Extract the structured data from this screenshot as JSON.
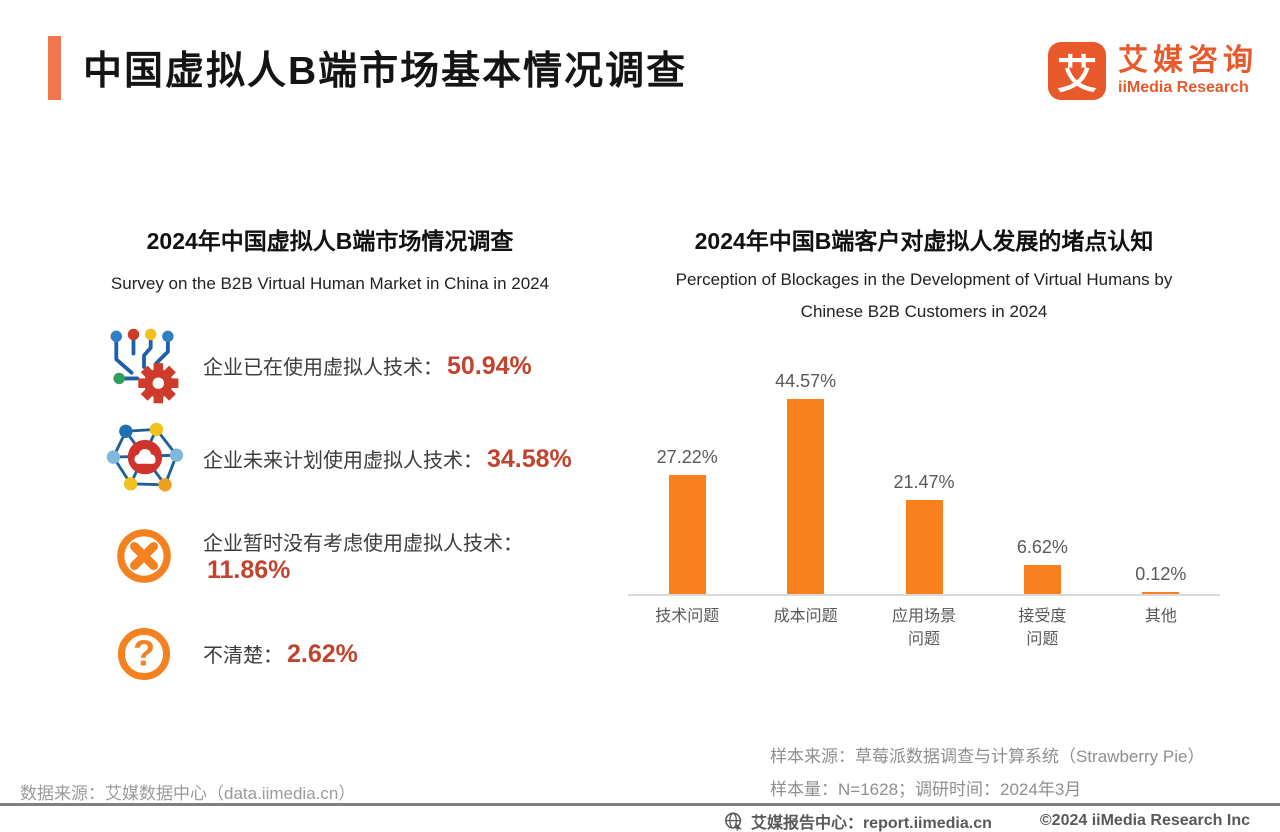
{
  "page": {
    "title": "中国虚拟人B端市场基本情况调查",
    "logo": {
      "glyph": "艾",
      "name_cn": "艾媒咨询",
      "name_en": "iiMedia Research"
    }
  },
  "left_panel": {
    "title": "2024年中国虚拟人B端市场情况调查",
    "subtitle": "Survey on the B2B Virtual Human Market in China in 2024",
    "items": [
      {
        "icon": "circuit-tech-icon",
        "label": "企业已在使用虚拟人技术：",
        "value": "50.94%"
      },
      {
        "icon": "network-cloud-icon",
        "label": "企业未来计划使用虚拟人技术：",
        "value": "34.58%"
      },
      {
        "icon": "cross-circle-icon",
        "label": "企业暂时没有考虑使用虚拟人技术：",
        "value": "11.86%"
      },
      {
        "icon": "question-circle-icon",
        "label": "不清楚：",
        "value": "2.62%"
      }
    ]
  },
  "right_panel": {
    "title": "2024年中国B端客户对虚拟人发展的堵点认知",
    "subtitle_line1": "Perception of Blockages in the Development of Virtual Humans by",
    "subtitle_line2": "Chinese B2B Customers in 2024"
  },
  "chart_data": {
    "type": "bar",
    "title": "2024年中国B端客户对虚拟人发展的堵点认知",
    "categories": [
      "技术问题",
      "成本问题",
      "应用场景问题",
      "接受度问题",
      "其他"
    ],
    "category_lines": [
      [
        "技术问题"
      ],
      [
        "成本问题"
      ],
      [
        "应用场景",
        "问题"
      ],
      [
        "接受度",
        "问题"
      ],
      [
        "其他"
      ]
    ],
    "values": [
      27.22,
      44.57,
      21.47,
      6.62,
      0.12
    ],
    "value_labels": [
      "27.22%",
      "44.57%",
      "21.47%",
      "6.62%",
      "0.12%"
    ],
    "xlabel": "",
    "ylabel": "",
    "ylim": [
      0,
      50
    ],
    "grid": false,
    "legend": false,
    "bar_color": "#F8811E"
  },
  "footnotes": {
    "data_source": "数据来源：艾媒数据中心（data.iimedia.cn）",
    "sample_source": "样本来源：草莓派数据调查与计算系统（Strawberry Pie）",
    "sample_info": "样本量：N=1628；调研时间：2024年3月"
  },
  "footer": {
    "report_center": "艾媒报告中心：report.iimedia.cn",
    "copyright": "©2024  iiMedia Research  Inc"
  },
  "colors": {
    "accent_orange": "#F1764E",
    "brand_orange": "#E8592B",
    "bar_orange": "#F8811E",
    "value_red": "#C2442E"
  }
}
